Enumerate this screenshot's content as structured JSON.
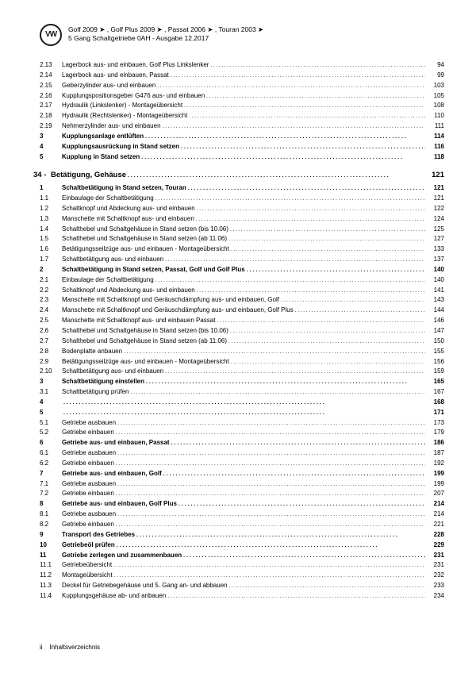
{
  "header": {
    "line1": "Golf 2009 ➤ , Golf Plus 2009 ➤ , Passat 2006 ➤ , Touran 2003 ➤",
    "line2": "5 Gang Schaltgetriebe 0AH - Ausgabe 12.2017"
  },
  "sections": [
    {
      "type": "sub",
      "rows": [
        {
          "n": "2.13",
          "t": "Lagerbock aus- und einbauen, Golf Plus Linkslenker",
          "p": "94"
        },
        {
          "n": "2.14",
          "t": "Lagerbock aus- und einbauen, Passat",
          "p": "99"
        },
        {
          "n": "2.15",
          "t": "Geberzylinder aus- und einbauen",
          "p": "103"
        },
        {
          "n": "2.16",
          "t": "Kupplungspositionsgeber G476 aus- und einbauen",
          "p": "105"
        },
        {
          "n": "2.17",
          "t": "Hydraulik (Linkslenker) - Montageübersicht",
          "p": "108"
        },
        {
          "n": "2.18",
          "t": "Hydraulik (Rechtslenker) - Montageübersicht",
          "p": "110"
        },
        {
          "n": "2.19",
          "t": "Nehmerzylinder aus- und einbauen",
          "p": "111"
        }
      ]
    },
    {
      "type": "boldrows",
      "rows": [
        {
          "n": "3",
          "t": "Kupplungsanlage entlüften",
          "p": "114"
        },
        {
          "n": "4",
          "t": "Kupplungsausrückung in Stand setzen",
          "p": "116"
        },
        {
          "n": "5",
          "t": "Kupplung in Stand setzen",
          "p": "118"
        }
      ]
    },
    {
      "type": "head",
      "n": "34 -",
      "t": "Betätigung, Gehäuse",
      "p": "121"
    },
    {
      "type": "boldrows",
      "rows": [
        {
          "n": "1",
          "t": "Schaltbetätigung in Stand setzen, Touran",
          "p": "121"
        }
      ]
    },
    {
      "type": "sub",
      "rows": [
        {
          "n": "1.1",
          "t": "Einbaulage der Schaltbetätigung",
          "p": "121"
        },
        {
          "n": "1.2",
          "t": "Schaltknopf und Abdeckung aus- und einbauen",
          "p": "122"
        },
        {
          "n": "1.3",
          "t": "Manschette mit Schaltknopf aus- und einbauen",
          "p": "124"
        },
        {
          "n": "1.4",
          "t": "Schalthebel und Schaltgehäuse in Stand setzen (bis 10.06)",
          "p": "125"
        },
        {
          "n": "1.5",
          "t": "Schalthebel und Schaltgehäuse in Stand setzen (ab 11.06)",
          "p": "127"
        },
        {
          "n": "1.6",
          "t": "Betätigungsseilzüge aus- und einbauen - Montageübersicht",
          "p": "133"
        },
        {
          "n": "1.7",
          "t": "Schaltbetätigung aus- und einbauen",
          "p": "137"
        }
      ]
    },
    {
      "type": "boldrows",
      "rows": [
        {
          "n": "2",
          "t": "Schaltbetätigung in Stand setzen, Passat, Golf und Golf Plus",
          "p": "140"
        }
      ]
    },
    {
      "type": "sub",
      "rows": [
        {
          "n": "2.1",
          "t": "Einbaulage der Schaltbetätigung",
          "p": "140"
        },
        {
          "n": "2.2",
          "t": "Schaltknopf und Abdeckung aus- und einbauen",
          "p": "141"
        },
        {
          "n": "2.3",
          "t": "Manschette mit Schaltknopf und Geräuschdämpfung aus- und einbauen, Golf",
          "p": "143"
        },
        {
          "n": "2.4",
          "t": "Manschette mit Schaltknopf und Geräuschdämpfung aus- und einbauen, Golf Plus",
          "p": "144"
        },
        {
          "n": "2.5",
          "t": "Manschette mit Schaltknopf aus- und einbauen Passat",
          "p": "146"
        },
        {
          "n": "2.6",
          "t": "Schalthebel und Schaltgehäuse in Stand setzen (bis 10.06)",
          "p": "147"
        },
        {
          "n": "2.7",
          "t": "Schalthebel und Schaltgehäuse in Stand setzen (ab 11.06)",
          "p": "150"
        },
        {
          "n": "2.8",
          "t": "Bodenplatte anbauen",
          "p": "155"
        },
        {
          "n": "2.9",
          "t": "Betätigungsseilzüge aus- und einbauen - Montageübersicht",
          "p": "156"
        },
        {
          "n": "2.10",
          "t": "Schaltbetätigung aus- und einbauen",
          "p": "159"
        }
      ]
    },
    {
      "type": "boldrows",
      "rows": [
        {
          "n": "3",
          "t": "Schaltbetätigung einstellen",
          "p": "165"
        }
      ]
    },
    {
      "type": "sub",
      "rows": [
        {
          "n": "3.1",
          "t": "Schaltbetätigung prüfen",
          "p": "167"
        }
      ]
    },
    {
      "type": "boldrows",
      "rows": [
        {
          "n": "4",
          "t": "",
          "p": "168"
        },
        {
          "n": "5",
          "t": "",
          "p": "171"
        }
      ]
    },
    {
      "type": "sub",
      "rows": [
        {
          "n": "5.1",
          "t": "Getriebe ausbauen",
          "p": "173"
        },
        {
          "n": "5.2",
          "t": "Getriebe einbauen",
          "p": "179"
        }
      ]
    },
    {
      "type": "boldrows",
      "rows": [
        {
          "n": "6",
          "t": "Getriebe aus- und einbauen, Passat",
          "p": "186"
        }
      ]
    },
    {
      "type": "sub",
      "rows": [
        {
          "n": "6.1",
          "t": "Getriebe ausbauen",
          "p": "187"
        },
        {
          "n": "6.2",
          "t": "Getriebe einbauen",
          "p": "192"
        }
      ]
    },
    {
      "type": "boldrows",
      "rows": [
        {
          "n": "7",
          "t": "Getriebe aus- und einbauen, Golf",
          "p": "199"
        }
      ]
    },
    {
      "type": "sub",
      "rows": [
        {
          "n": "7.1",
          "t": "Getriebe ausbauen",
          "p": "199"
        },
        {
          "n": "7.2",
          "t": "Getriebe einbauen",
          "p": "207"
        }
      ]
    },
    {
      "type": "boldrows",
      "rows": [
        {
          "n": "8",
          "t": "Getriebe aus- und einbauen, Golf Plus",
          "p": "214"
        }
      ]
    },
    {
      "type": "sub",
      "rows": [
        {
          "n": "8.1",
          "t": "Getriebe ausbauen",
          "p": "214"
        },
        {
          "n": "8.2",
          "t": "Getriebe einbauen",
          "p": "221"
        }
      ]
    },
    {
      "type": "boldrows",
      "rows": [
        {
          "n": "9",
          "t": "Transport des Getriebes",
          "p": "228"
        },
        {
          "n": "10",
          "t": "Getriebeöl prüfen",
          "p": "229"
        },
        {
          "n": "11",
          "t": "Getriebe zerlegen und zusammenbauen",
          "p": "231"
        }
      ]
    },
    {
      "type": "sub",
      "rows": [
        {
          "n": "11.1",
          "t": "Getriebeübersicht",
          "p": "231"
        },
        {
          "n": "11.2",
          "t": "Montageübersicht",
          "p": "232"
        },
        {
          "n": "11.3",
          "t": "Deckel für Getriebegehäuse und 5. Gang an- und abbauen",
          "p": "233"
        },
        {
          "n": "11.4",
          "t": "Kupplungsgehäuse ab- und anbauen",
          "p": "234"
        }
      ]
    }
  ],
  "footer": {
    "pagenum": "ii",
    "label": "Inhaltsverzeichnis"
  }
}
